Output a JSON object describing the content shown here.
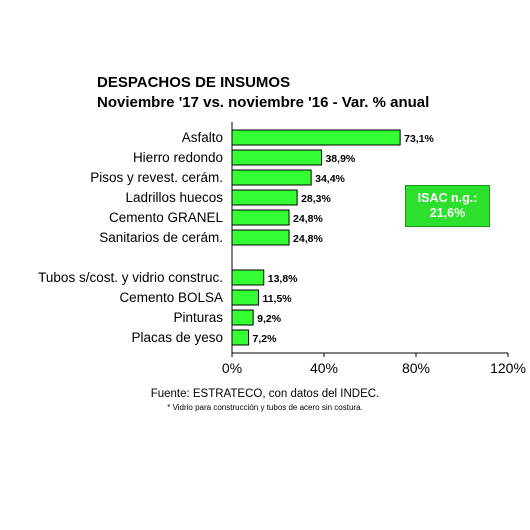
{
  "chart_data": {
    "type": "bar",
    "orientation": "horizontal",
    "title": "DESPACHOS DE INSUMOS",
    "subtitle": "Noviembre '17 vs. noviembre '16 - Var. % anual",
    "categories": [
      "Asfalto",
      "Hierro redondo",
      "Pisos y revest. cerám.",
      "Ladrillos huecos",
      "Cemento GRANEL",
      "Sanitarios de cerám.",
      "Tubos s/cost. y vidrio construc.",
      "Cemento BOLSA",
      "Pinturas",
      "Placas de yeso"
    ],
    "values": [
      73.1,
      38.9,
      34.4,
      28.3,
      24.8,
      24.8,
      13.8,
      11.5,
      9.2,
      7.2
    ],
    "value_labels": [
      "73,1%",
      "38,9%",
      "34,4%",
      "28,3%",
      "24,8%",
      "24,8%",
      "13,8%",
      "11,5%",
      "9,2%",
      "7,2%"
    ],
    "xlim": [
      0,
      120
    ],
    "x_ticks": [
      0,
      40,
      80,
      120
    ],
    "x_tick_labels": [
      "0%",
      "40%",
      "80%",
      "120%"
    ],
    "bar_color": "#33ff33",
    "bar_edge_color": "#000000",
    "grid": false,
    "annotation": {
      "line1": "ISAC n.g.:",
      "line2": "21,6%",
      "color": "#2ee02e"
    }
  },
  "source": "Fuente: ESTRATECO, con datos del INDEC.",
  "note": "* Vidrio para construcción y tubos de acero sin costura."
}
